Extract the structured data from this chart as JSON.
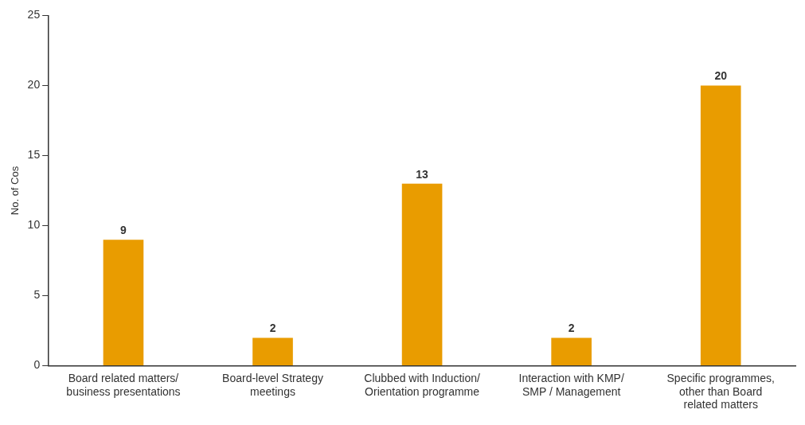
{
  "chart_data": {
    "type": "bar",
    "ylabel": "No. of Cos",
    "categories": [
      "Board related matters/ business presentations",
      "Board-level Strategy meetings",
      "Clubbed with Induction/ Orientation programme",
      "Interaction with KMP/ SMP / Management",
      "Specific programmes, other than Board related matters"
    ],
    "values": [
      9,
      2,
      13,
      2,
      20
    ],
    "color": "#e99c00",
    "ylim": [
      0,
      25
    ],
    "yticks": [
      0,
      5,
      10,
      15,
      20,
      25
    ],
    "grid": false,
    "legend": false,
    "data_labels": true
  }
}
